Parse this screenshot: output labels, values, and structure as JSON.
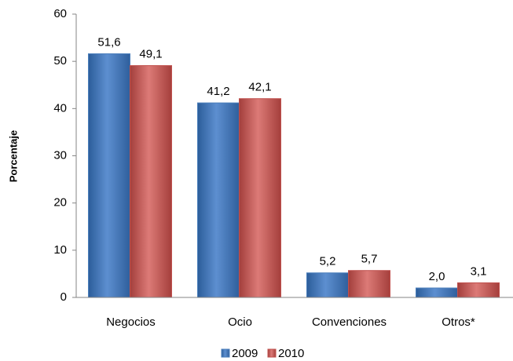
{
  "chart_data": {
    "type": "bar",
    "ylabel": "Porcentaje",
    "categories": [
      "Negocios",
      "Ocio",
      "Convenciones",
      "Otros*"
    ],
    "series": [
      {
        "name": "2009",
        "color": "#4a7ebb",
        "values": [
          51.6,
          41.2,
          5.2,
          2.0
        ],
        "value_labels": [
          "51,6",
          "41,2",
          "5,2",
          "2,0"
        ]
      },
      {
        "name": "2010",
        "color": "#c0504d",
        "values": [
          49.1,
          42.1,
          5.7,
          3.1
        ],
        "value_labels": [
          "49,1",
          "42,1",
          "5,7",
          "3,1"
        ]
      }
    ],
    "ylim": [
      0,
      60
    ],
    "yticks": [
      0,
      10,
      20,
      30,
      40,
      50,
      60
    ],
    "grid": false,
    "legend": "bottom"
  }
}
